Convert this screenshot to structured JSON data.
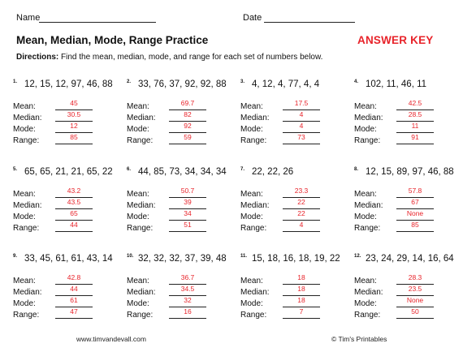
{
  "header": {
    "name_label": "Name",
    "date_label": "Date",
    "title": "Mean, Median, Mode, Range Practice",
    "answer_key": "ANSWER KEY",
    "directions_bold": "Directions:",
    "directions_text": " Find the mean, median, mode, and range for each set of numbers below."
  },
  "labels": {
    "mean": "Mean:",
    "median": "Median:",
    "mode": "Mode:",
    "range": "Range:"
  },
  "problems": [
    {
      "num": "1.",
      "set": "12, 15, 12, 97, 46, 88",
      "mean": "45",
      "median": "30.5",
      "mode": "12",
      "range": "85"
    },
    {
      "num": "2.",
      "set": "33, 76, 37, 92, 92, 88",
      "mean": "69.7",
      "median": "82",
      "mode": "92",
      "range": "59"
    },
    {
      "num": "3.",
      "set": "4, 12, 4, 77, 4, 4",
      "mean": "17.5",
      "median": "4",
      "mode": "4",
      "range": "73"
    },
    {
      "num": "4.",
      "set": "102, 11, 46, 11",
      "mean": "42.5",
      "median": "28.5",
      "mode": "11",
      "range": "91"
    },
    {
      "num": "5.",
      "set": "65, 65, 21, 21, 65, 22",
      "mean": "43.2",
      "median": "43.5",
      "mode": "65",
      "range": "44"
    },
    {
      "num": "6.",
      "set": "44, 85, 73, 34, 34, 34",
      "mean": "50.7",
      "median": "39",
      "mode": "34",
      "range": "51"
    },
    {
      "num": "7.",
      "set": "22, 22, 26",
      "mean": "23.3",
      "median": "22",
      "mode": "22",
      "range": "4"
    },
    {
      "num": "8.",
      "set": "12, 15, 89, 97, 46, 88",
      "mean": "57.8",
      "median": "67",
      "mode": "None",
      "range": "85"
    },
    {
      "num": "9.",
      "set": "33, 45, 61, 61, 43, 14",
      "mean": "42.8",
      "median": "44",
      "mode": "61",
      "range": "47"
    },
    {
      "num": "10.",
      "set": "32, 32, 32, 37, 39, 48",
      "mean": "36.7",
      "median": "34.5",
      "mode": "32",
      "range": "16"
    },
    {
      "num": "11.",
      "set": "15, 18, 16, 18, 19, 22",
      "mean": "18",
      "median": "18",
      "mode": "18",
      "range": "7"
    },
    {
      "num": "12.",
      "set": "23, 24, 29, 14, 16, 64",
      "mean": "28.3",
      "median": "23.5",
      "mode": "None",
      "range": "50"
    }
  ],
  "footer": {
    "website": "www.timvandevall.com",
    "copyright": "© Tim's Printables"
  }
}
